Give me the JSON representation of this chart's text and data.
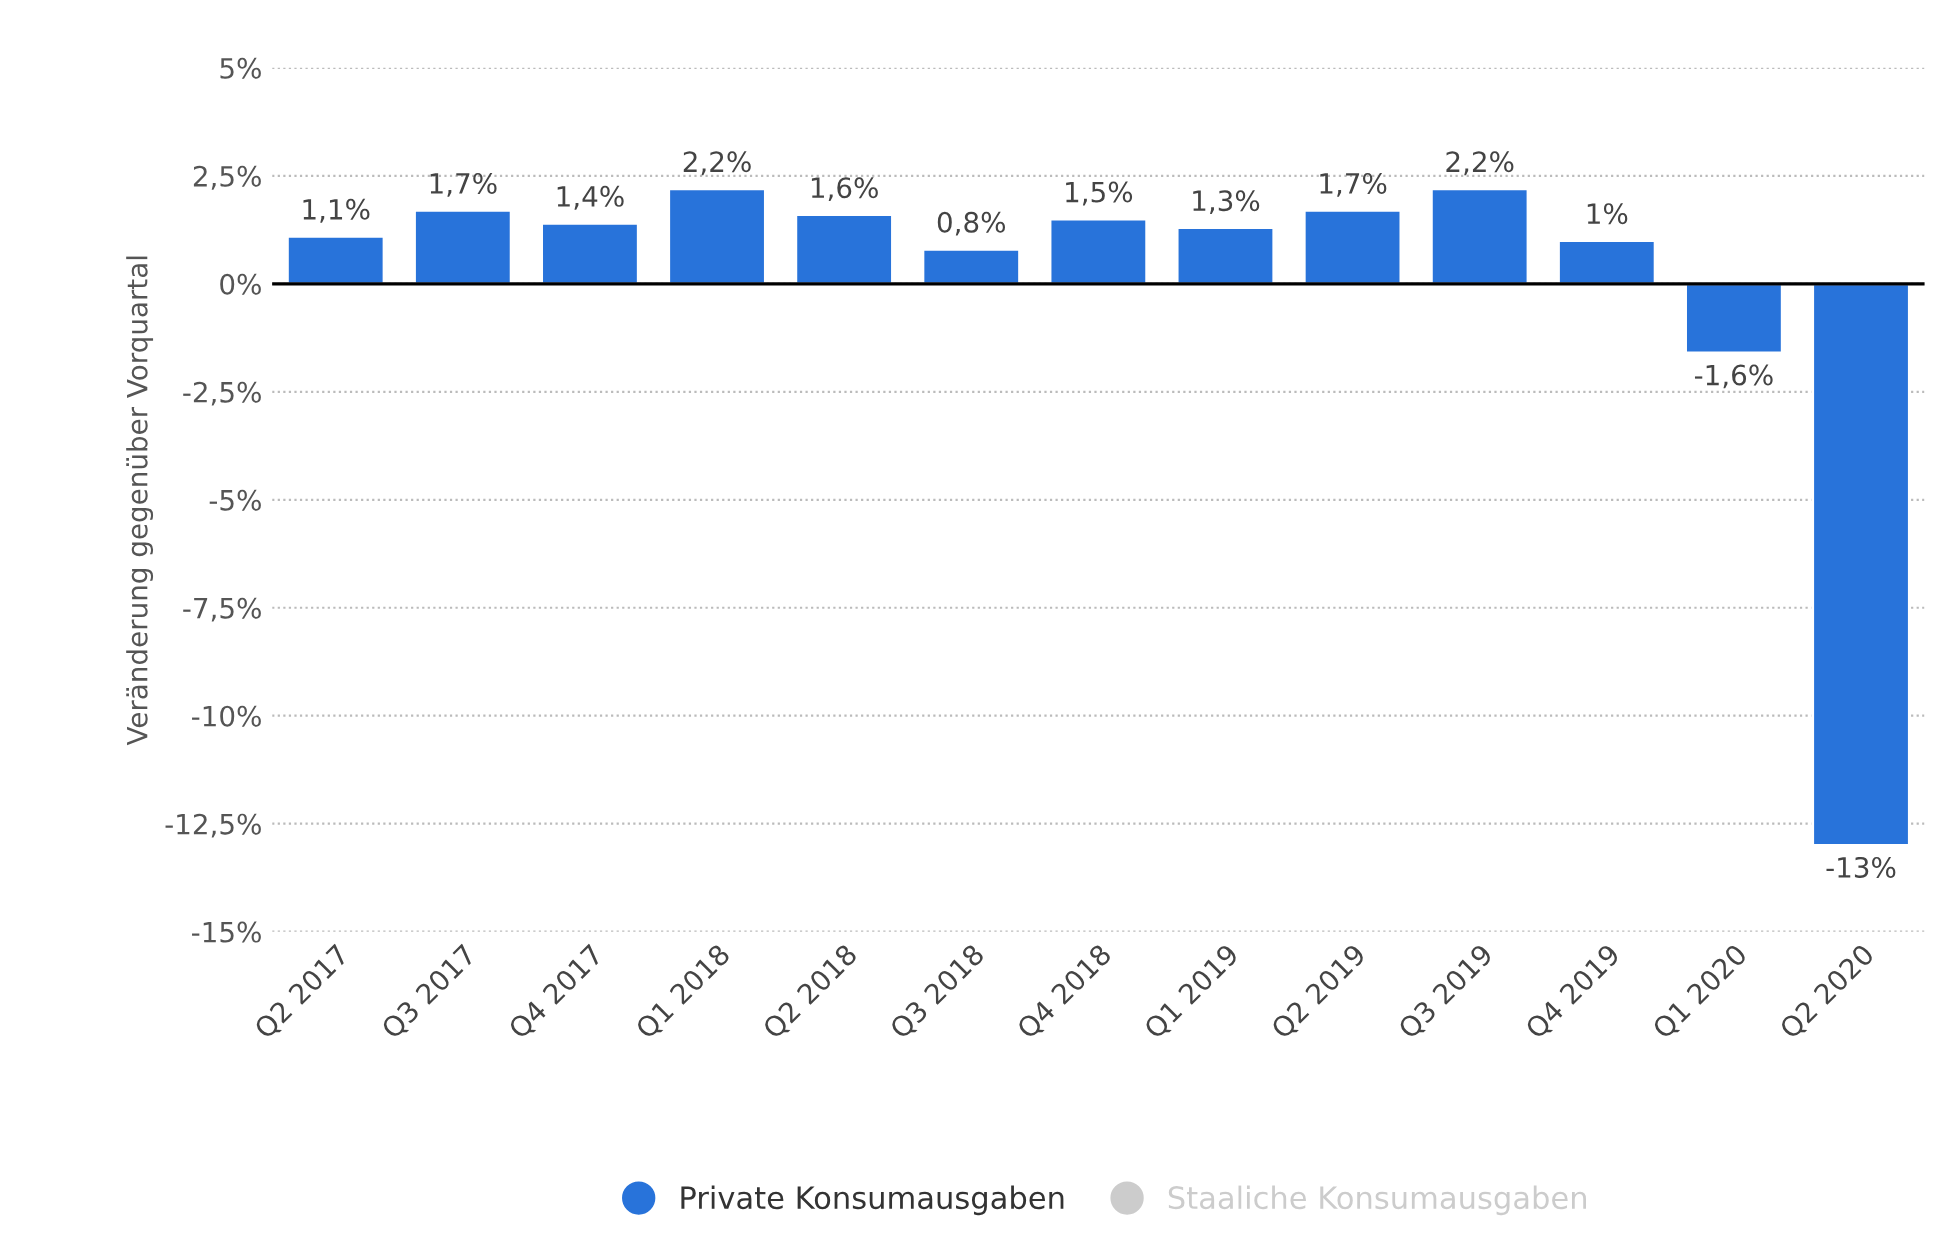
{
  "chart_data": {
    "type": "bar",
    "ylabel": "Veränderung gegenüber Vorquartal",
    "categories": [
      "Q2 2017",
      "Q3 2017",
      "Q4 2017",
      "Q1 2018",
      "Q2 2018",
      "Q3 2018",
      "Q4 2018",
      "Q1 2019",
      "Q2 2019",
      "Q3 2019",
      "Q4 2019",
      "Q1 2020",
      "Q2 2020"
    ],
    "series": [
      {
        "name": "Private Konsumausgaben",
        "color": "#2873da",
        "values": [
          1.1,
          1.7,
          1.4,
          2.2,
          1.6,
          0.8,
          1.5,
          1.3,
          1.7,
          2.2,
          1,
          -1.6,
          -13
        ],
        "value_labels": [
          "1,1%",
          "1,7%",
          "1,4%",
          "2,2%",
          "1,6%",
          "0,8%",
          "1,5%",
          "1,3%",
          "1,7%",
          "2,2%",
          "1%",
          "-1,6%",
          "-13%"
        ]
      },
      {
        "name": "Staaliche Konsumausgaben",
        "color": "#cccccc",
        "values": [
          null,
          null,
          null,
          null,
          null,
          null,
          null,
          null,
          null,
          null,
          null,
          null,
          null
        ]
      }
    ],
    "ylim": [
      -15,
      5
    ],
    "yticks": [
      {
        "value": -15,
        "label": "-15%"
      },
      {
        "value": -12.5,
        "label": "-12,5%"
      },
      {
        "value": -10,
        "label": "-10%"
      },
      {
        "value": -7.5,
        "label": "-7,5%"
      },
      {
        "value": -5,
        "label": "-5%"
      },
      {
        "value": -2.5,
        "label": "-2,5%"
      },
      {
        "value": 0,
        "label": "0%"
      },
      {
        "value": 2.5,
        "label": "2,5%"
      },
      {
        "value": 5,
        "label": "5%"
      }
    ],
    "grid": "y",
    "legend": "bottom"
  }
}
